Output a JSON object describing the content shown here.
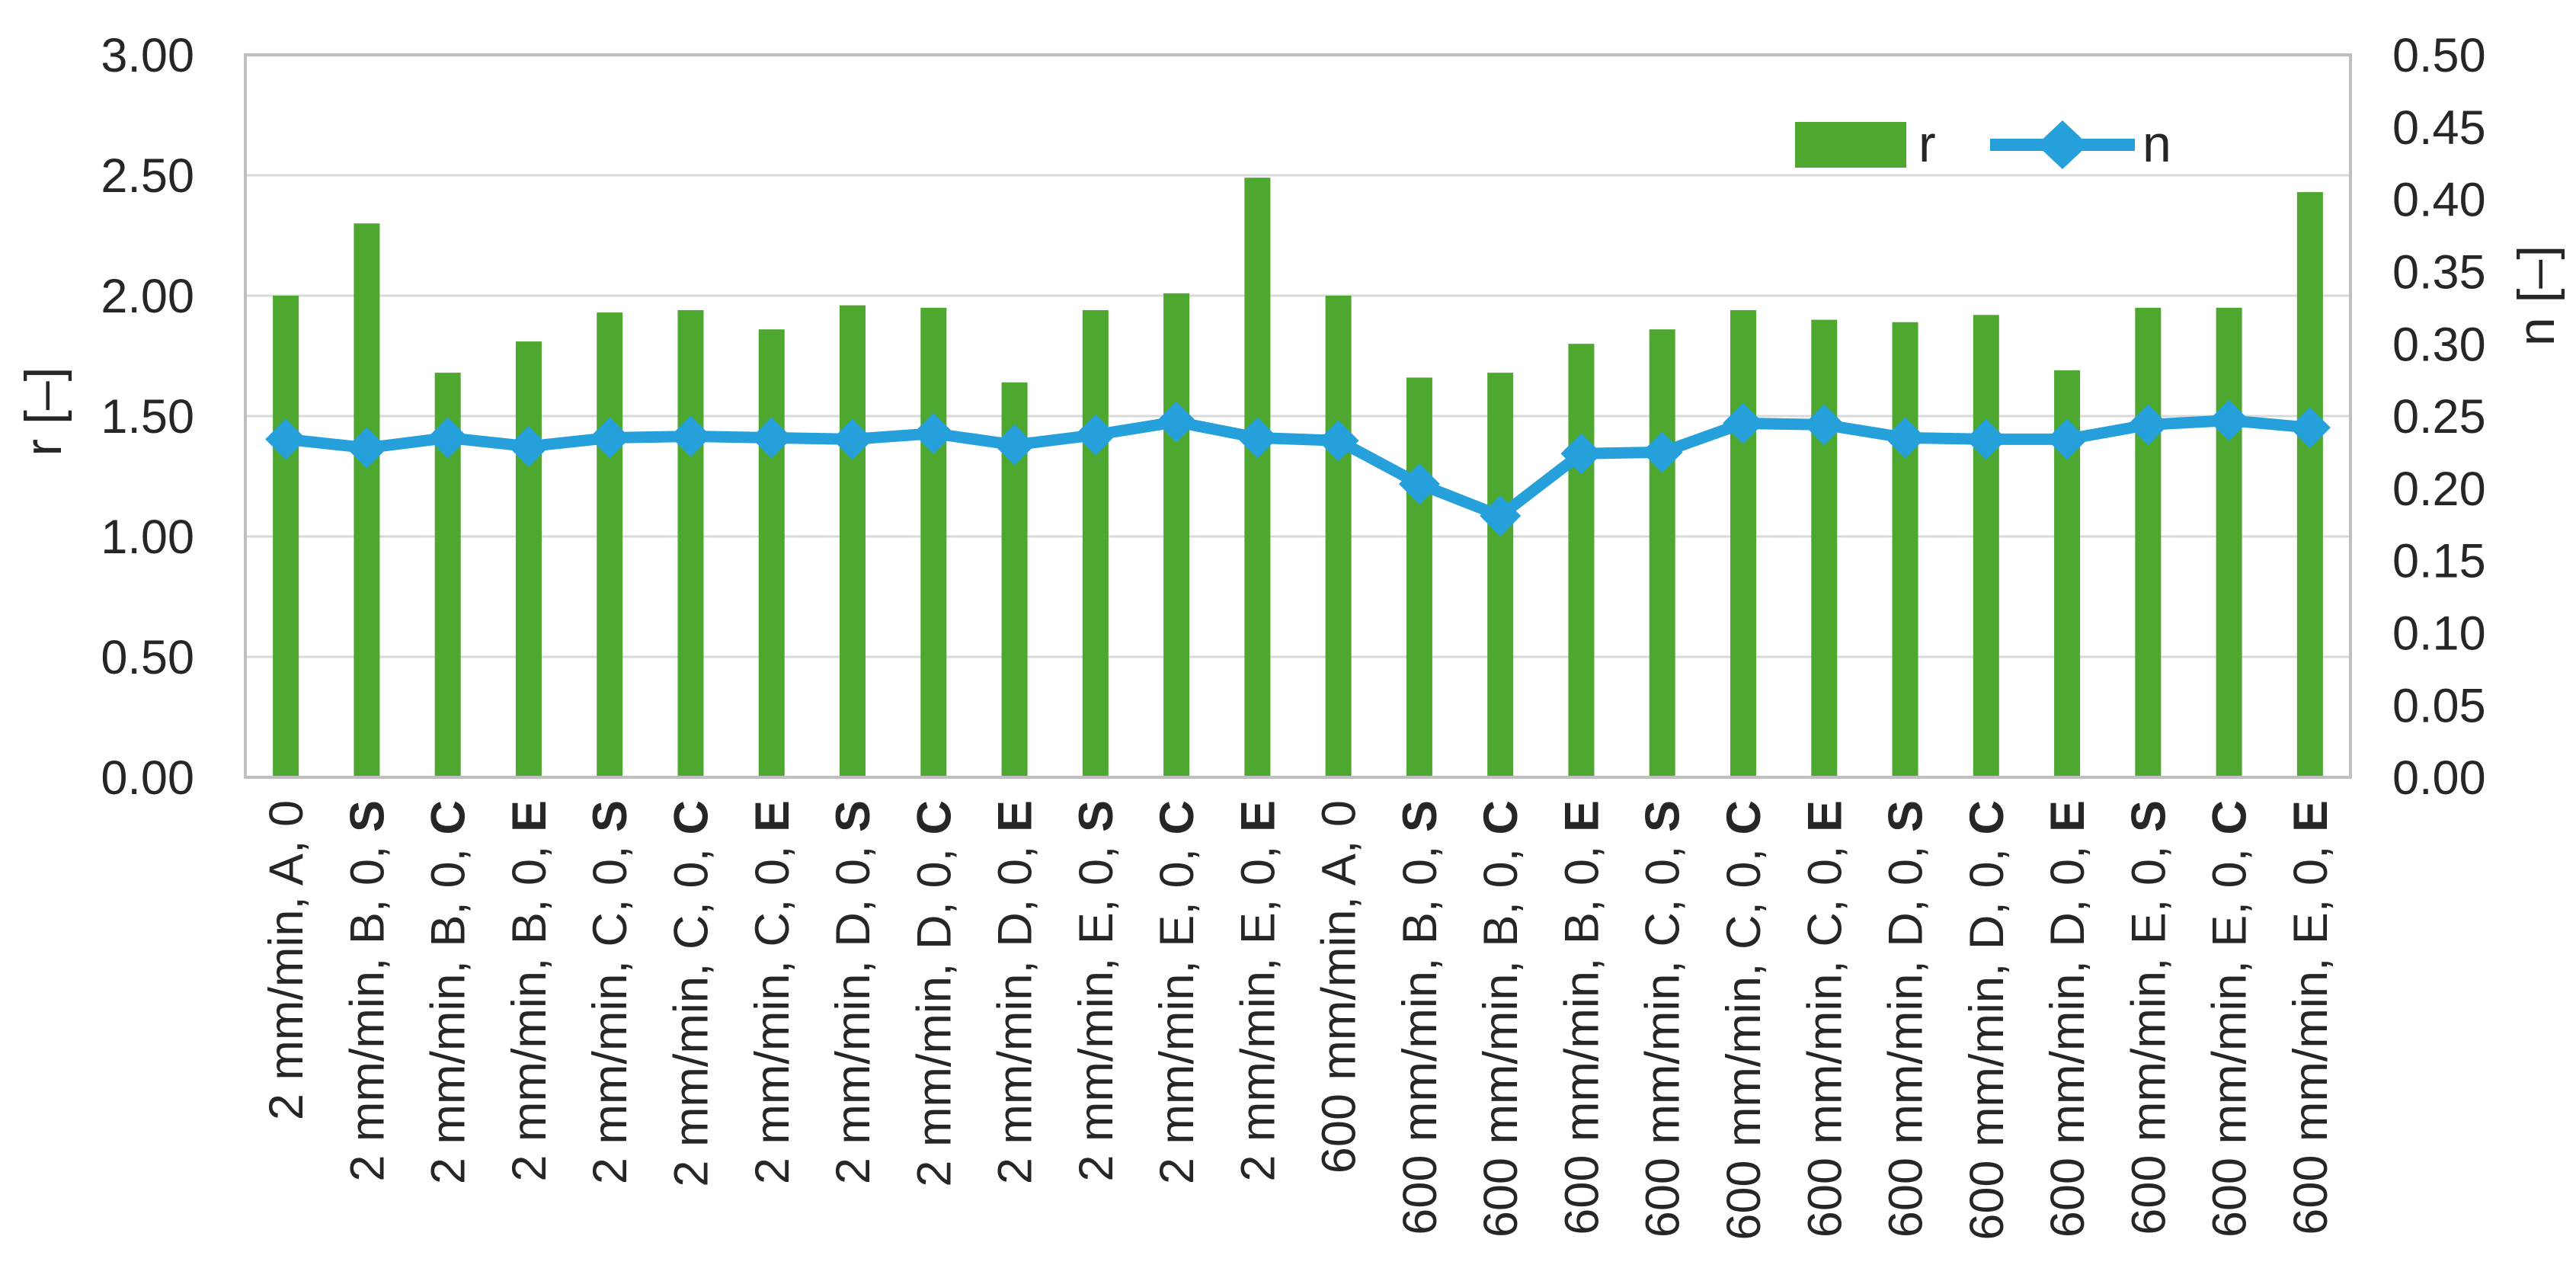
{
  "chart_data": {
    "type": "bar+line combo",
    "title": "",
    "categories": [
      "2 mm/min, A, 0",
      "2 mm/min, B, 0, S",
      "2 mm/min, B, 0, C",
      "2 mm/min, B, 0, E",
      "2 mm/min, C, 0, S",
      "2 mm/min, C, 0, C",
      "2 mm/min, C, 0, E",
      "2 mm/min, D, 0, S",
      "2 mm/min, D, 0, C",
      "2 mm/min, D, 0, E",
      "2 mm/min, E, 0, S",
      "2 mm/min, E, 0, C",
      "2 mm/min, E, 0, E",
      "600 mm/min, A, 0",
      "600 mm/min, B, 0, S",
      "600 mm/min, B, 0, C",
      "600 mm/min, B, 0, E",
      "600 mm/min, C, 0, S",
      "600 mm/min, C, 0, C",
      "600 mm/min, C, 0, E",
      "600 mm/min, D, 0, S",
      "600 mm/min, D, 0, C",
      "600 mm/min, D, 0, E",
      "600 mm/min, E, 0, S",
      "600 mm/min, E, 0, C",
      "600 mm/min, E, 0, E"
    ],
    "series": [
      {
        "name": "r",
        "type": "bar",
        "axis": "left",
        "color": "#4EA72E",
        "values": [
          2.0,
          2.3,
          1.68,
          1.81,
          1.93,
          1.94,
          1.86,
          1.96,
          1.95,
          1.64,
          1.94,
          2.01,
          2.49,
          2.0,
          1.66,
          1.68,
          1.8,
          1.86,
          1.94,
          1.9,
          1.89,
          1.92,
          1.69,
          1.95,
          1.95,
          2.43
        ]
      },
      {
        "name": "n",
        "type": "line",
        "axis": "right",
        "color": "#26A0DA",
        "values": [
          0.234,
          0.228,
          0.235,
          0.229,
          0.235,
          0.236,
          0.235,
          0.234,
          0.238,
          0.23,
          0.237,
          0.246,
          0.235,
          0.233,
          0.203,
          0.181,
          0.224,
          0.225,
          0.245,
          0.244,
          0.235,
          0.234,
          0.234,
          0.244,
          0.247,
          0.242
        ]
      }
    ],
    "left_axis": {
      "title": "r [–]",
      "min": 0,
      "max": 3,
      "tick_labels": [
        "3.00",
        "2.50",
        "2.00",
        "1.50",
        "1.00",
        "0.50",
        "0.00"
      ],
      "tick_values": [
        3.0,
        2.5,
        2.0,
        1.5,
        1.0,
        0.5,
        0.0
      ]
    },
    "right_axis": {
      "title": "n [–]",
      "min": 0,
      "max": 0.5,
      "tick_labels": [
        "0.50",
        "0.45",
        "0.40",
        "0.35",
        "0.30",
        "0.25",
        "0.20",
        "0.15",
        "0.10",
        "0.05",
        "0.00"
      ],
      "tick_values": [
        0.5,
        0.45,
        0.4,
        0.35,
        0.3,
        0.25,
        0.2,
        0.15,
        0.1,
        0.05,
        0.0
      ]
    },
    "legend": {
      "position": "top-right-inside",
      "entries": [
        "r",
        "n"
      ]
    },
    "grid": true,
    "colors": {
      "gridline": "#D9D9D9",
      "plot_border": "#BFBFBF",
      "text": "#262626"
    }
  }
}
